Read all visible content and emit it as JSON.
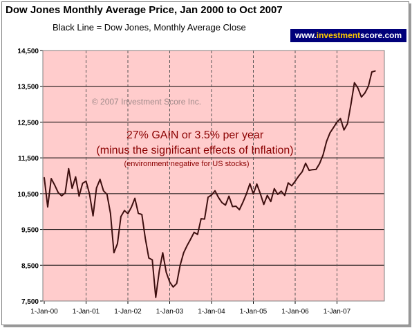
{
  "chart_data": {
    "type": "line",
    "title": "Dow Jones Monthly Average Price, Jan 2000 to Oct 2007",
    "subtitle": "Black Line = Dow Jones, Monthly Average Close",
    "website": {
      "prefix": "www.",
      "highlight": "investment",
      "suffix": "score.com"
    },
    "copyright": "© 2007 Investment Score Inc.",
    "annotations": [
      "27% GAIN or 3.5% per year",
      "(minus the significant effects of Inflation)",
      "(environment negative for US stocks)"
    ],
    "xlabel": "",
    "ylabel": "",
    "ylim": [
      7500,
      14500
    ],
    "yticks": [
      7500,
      8500,
      9500,
      10500,
      11500,
      12500,
      13500,
      14500
    ],
    "ytick_labels": [
      "7,500",
      "8,500",
      "9,500",
      "10,500",
      "11,500",
      "12,500",
      "13,500",
      "14,500"
    ],
    "xtick_labels": [
      "1-Jan-00",
      "1-Jan-01",
      "1-Jan-02",
      "1-Jan-03",
      "1-Jan-04",
      "1-Jan-05",
      "1-Jan-06",
      "1-Jan-07"
    ],
    "x_start": "Jan 2000",
    "x_end": "Oct 2007",
    "grid": {
      "horizontal": true,
      "vertical_dashed": true
    },
    "colors": {
      "plot_background": "#ffcccc",
      "line": "#3d0f0f",
      "annotation": "#8b0000",
      "badge_background": "#00007a",
      "badge_highlight": "#ffcc00"
    },
    "series": [
      {
        "values": [
          10950,
          10130,
          10920,
          10740,
          10530,
          10440,
          10520,
          11200,
          10650,
          10970,
          10430,
          10790,
          10850,
          10490,
          9880,
          10660,
          10900,
          10580,
          10480,
          9950,
          8850,
          9100,
          9860,
          10030,
          9940,
          10120,
          10370,
          9950,
          9920,
          9250,
          8700,
          8650,
          7600,
          8340,
          8850,
          8300,
          8030,
          7890,
          7990,
          8500,
          8850,
          9050,
          9230,
          9420,
          9360,
          9800,
          9790,
          10400,
          10460,
          10580,
          10390,
          10250,
          10180,
          10430,
          10140,
          10150,
          10050,
          10260,
          10490,
          10780,
          10490,
          10770,
          10500,
          10200,
          10450,
          10280,
          10640,
          10480,
          10570,
          10450,
          10800,
          10720,
          10850,
          10990,
          11110,
          11350,
          11150,
          11170,
          11180,
          11340,
          11580,
          11960,
          12200,
          12350,
          12500,
          12600,
          12280,
          12450,
          13000,
          13600,
          13450,
          13200,
          13310,
          13500,
          13900,
          13930
        ]
      }
    ]
  }
}
